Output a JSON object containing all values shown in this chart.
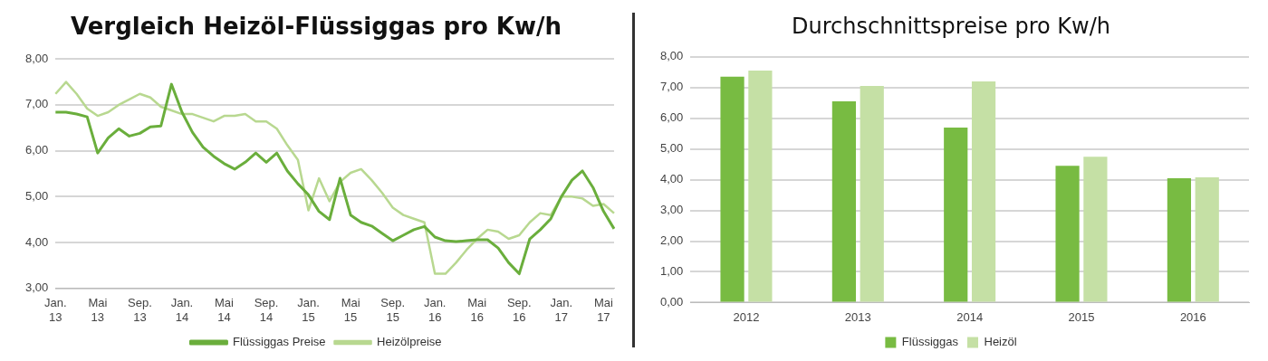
{
  "chart_data": [
    {
      "type": "line",
      "title": "Vergleich Heizöl-Flüssiggas pro Kw/h",
      "categories": [
        "Jan. 13",
        null,
        null,
        null,
        "Mai 13",
        null,
        null,
        null,
        "Sep. 13",
        null,
        null,
        null,
        "Jan. 14",
        null,
        null,
        null,
        "Mai 14",
        null,
        null,
        null,
        "Sep. 14",
        null,
        null,
        null,
        "Jan. 15",
        null,
        null,
        null,
        "Mai 15",
        null,
        null,
        null,
        "Sep. 15",
        null,
        null,
        null,
        "Jan. 16",
        null,
        null,
        null,
        "Mai 16",
        null,
        null,
        null,
        "Sep. 16",
        null,
        null,
        null,
        "Jan. 17",
        null,
        null,
        null,
        "Mai 17",
        null
      ],
      "series": [
        {
          "name": "Flüssiggas Preise",
          "color": "#6aae3c",
          "values": [
            6.84,
            6.84,
            6.8,
            6.74,
            5.95,
            6.28,
            6.48,
            6.32,
            6.38,
            6.52,
            6.54,
            7.45,
            6.84,
            6.4,
            6.08,
            5.88,
            5.72,
            5.6,
            5.75,
            5.95,
            5.75,
            5.95,
            5.56,
            5.28,
            5.04,
            4.68,
            4.5,
            5.4,
            4.6,
            4.44,
            4.36,
            4.2,
            4.04,
            4.16,
            4.28,
            4.35,
            4.12,
            4.04,
            4.02,
            4.04,
            4.06,
            4.06,
            3.88,
            3.56,
            3.32,
            4.08,
            4.28,
            4.52,
            5.0,
            5.36,
            5.56,
            5.2,
            4.68,
            4.3
          ]
        },
        {
          "name": "Heizölpreise",
          "color": "#b8d890",
          "values": [
            7.24,
            7.5,
            7.24,
            6.92,
            6.76,
            6.84,
            7.0,
            7.12,
            7.24,
            7.16,
            6.96,
            6.88,
            6.8,
            6.8,
            6.72,
            6.64,
            6.76,
            6.76,
            6.8,
            6.64,
            6.64,
            6.48,
            6.12,
            5.8,
            4.7,
            5.4,
            4.9,
            5.32,
            5.52,
            5.6,
            5.36,
            5.08,
            4.76,
            4.6,
            4.52,
            4.44,
            3.32,
            3.32,
            3.56,
            3.84,
            4.08,
            4.28,
            4.24,
            4.08,
            4.16,
            4.44,
            4.64,
            4.6,
            5.0,
            5.0,
            4.96,
            4.8,
            4.84,
            4.64
          ]
        }
      ],
      "ylim": [
        3,
        8
      ],
      "yticks": [
        {
          "value": 3,
          "label": "3,00"
        },
        {
          "value": 4,
          "label": "4,00"
        },
        {
          "value": 5,
          "label": "5,00"
        },
        {
          "value": 6,
          "label": "6,00"
        },
        {
          "value": 7,
          "label": "7,00"
        },
        {
          "value": 8,
          "label": "8,00"
        }
      ],
      "grid": "y",
      "legend": "bottom",
      "marker": "none",
      "line_style": "solid"
    },
    {
      "type": "bar",
      "title": "Durchschnittspreise pro Kw/h",
      "categories": [
        "2012",
        "2013",
        "2014",
        "2015",
        "2016"
      ],
      "series": [
        {
          "name": "Flüssiggas",
          "color": "#78bb42",
          "values": [
            7.35,
            6.55,
            5.7,
            4.45,
            4.05
          ]
        },
        {
          "name": "Heizöl",
          "color": "#c5e0a5",
          "values": [
            7.55,
            7.05,
            7.2,
            4.75,
            4.08
          ]
        }
      ],
      "ylim": [
        0,
        8
      ],
      "yticks": [
        {
          "value": 0,
          "label": "0,00"
        },
        {
          "value": 1,
          "label": "1,00"
        },
        {
          "value": 2,
          "label": "2,00"
        },
        {
          "value": 3,
          "label": "3,00"
        },
        {
          "value": 4,
          "label": "4,00"
        },
        {
          "value": 5,
          "label": "5,00"
        },
        {
          "value": 6,
          "label": "6,00"
        },
        {
          "value": 7,
          "label": "7,00"
        },
        {
          "value": 8,
          "label": "8,00"
        }
      ],
      "grid": "y",
      "legend": "bottom"
    }
  ]
}
